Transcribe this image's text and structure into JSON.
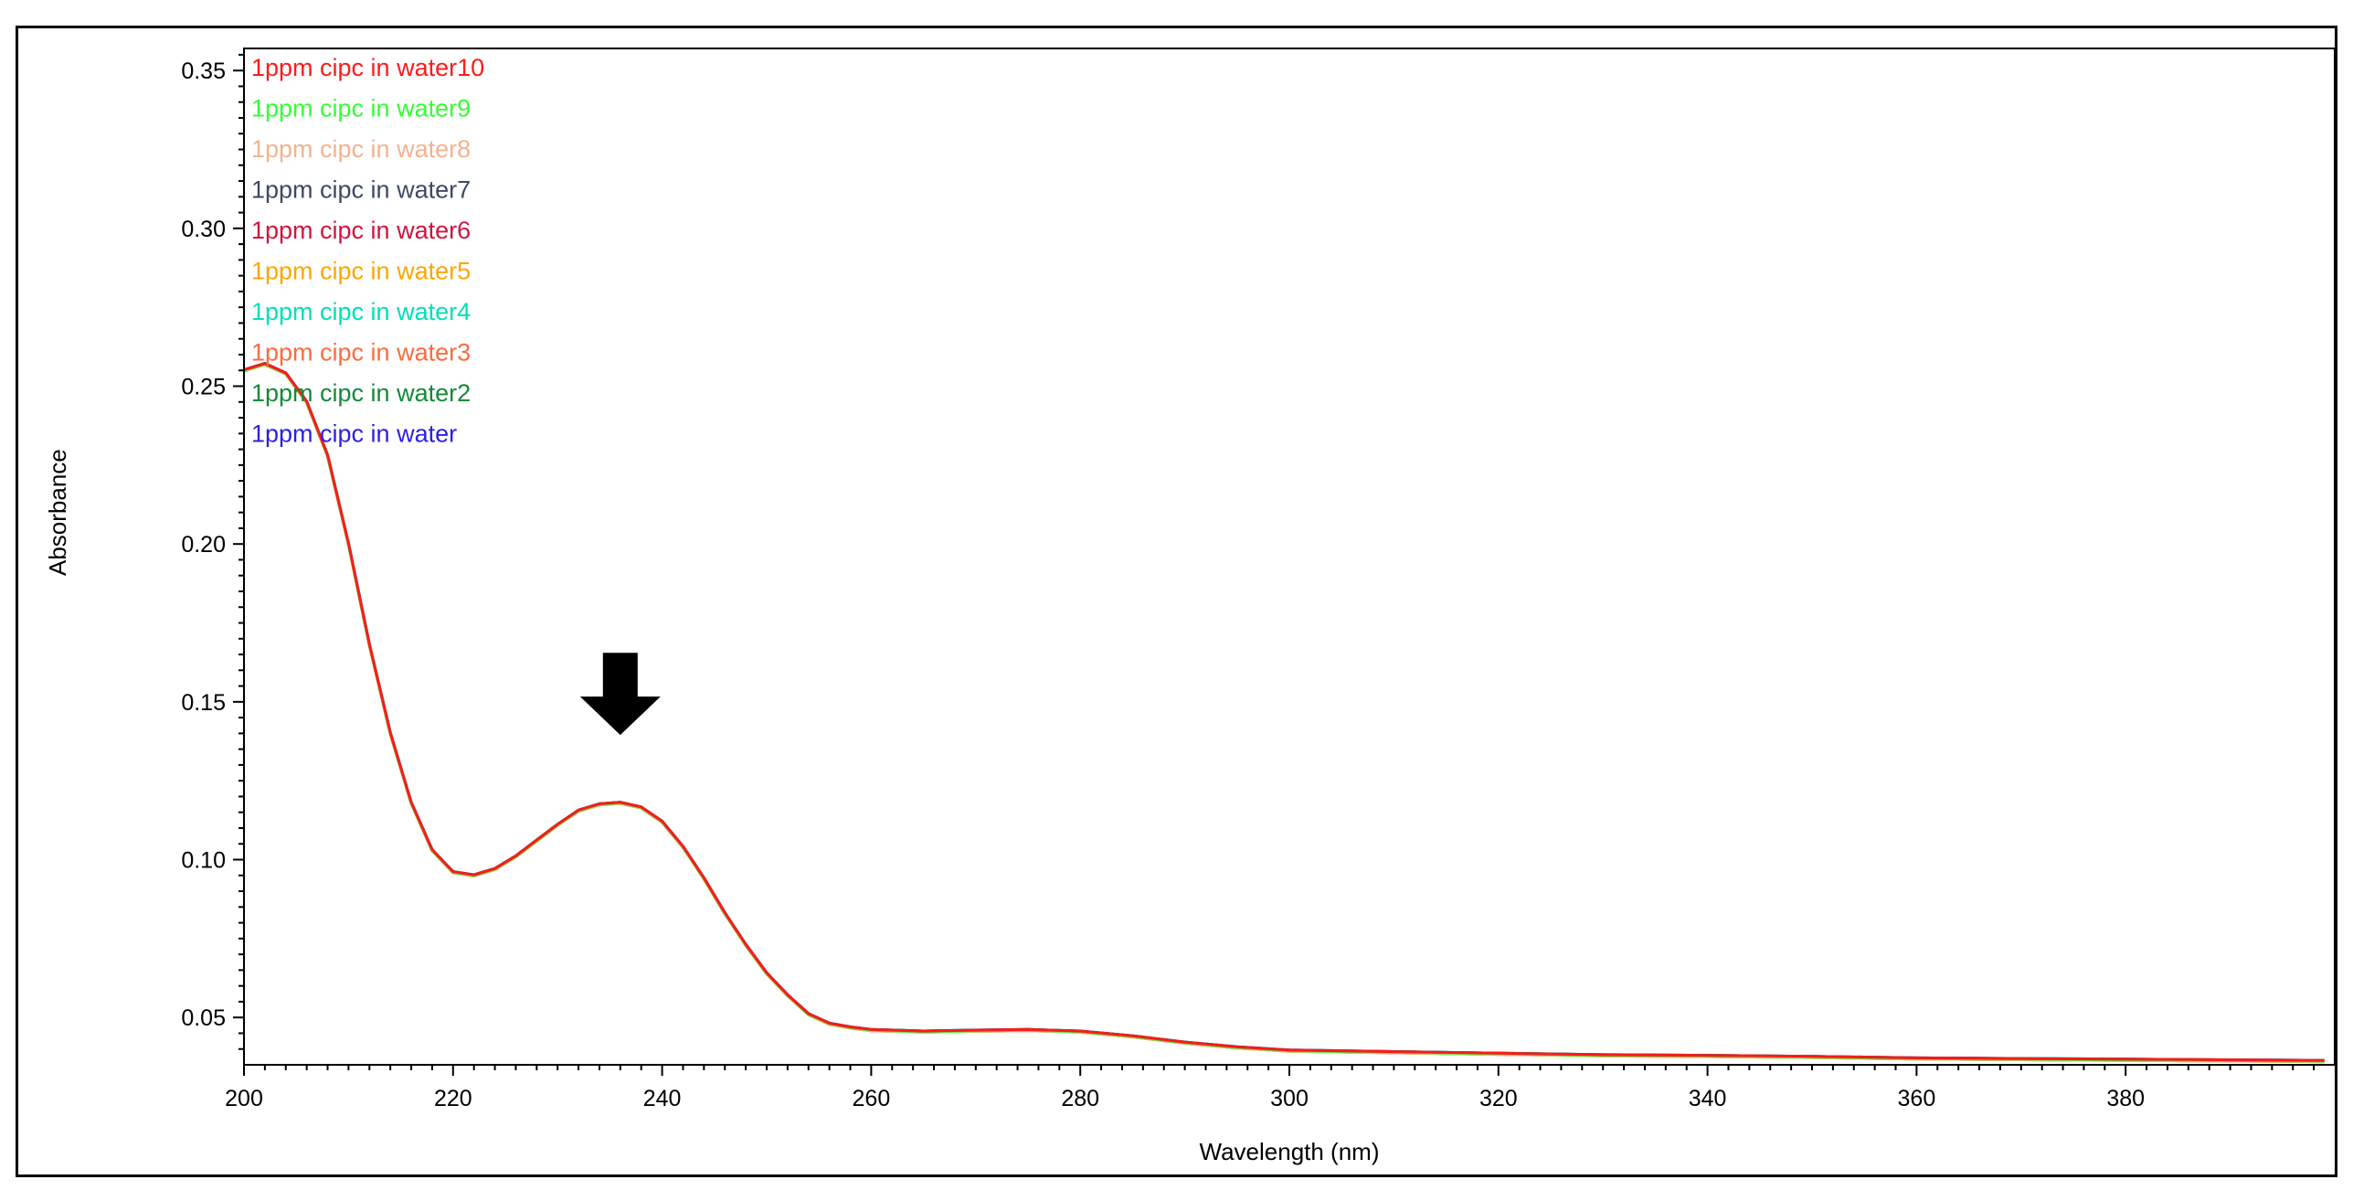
{
  "chart_data": {
    "type": "line",
    "title": "",
    "xlabel": "Wavelength (nm)",
    "ylabel": "Absorbance",
    "xlim": [
      200,
      400
    ],
    "ylim": [
      0.035,
      0.357
    ],
    "x_ticks": [
      "200",
      "220",
      "240",
      "260",
      "280",
      "300",
      "320",
      "340",
      "360",
      "380"
    ],
    "y_ticks": [
      "0.05",
      "0.10",
      "0.15",
      "0.20",
      "0.25",
      "0.30",
      "0.35"
    ],
    "grid": false,
    "legend_position": "top-left",
    "annotation": {
      "type": "arrow-down",
      "x": 236,
      "y_top": 0.1655,
      "y_bottom": 0.1395
    },
    "spectrum": {
      "x": [
        200,
        202,
        204,
        206,
        208,
        210,
        212,
        214,
        216,
        218,
        220,
        222,
        224,
        226,
        228,
        230,
        232,
        234,
        236,
        238,
        240,
        242,
        244,
        246,
        248,
        250,
        252,
        254,
        256,
        258,
        260,
        265,
        270,
        275,
        280,
        285,
        290,
        295,
        300,
        310,
        320,
        330,
        340,
        350,
        360,
        370,
        380,
        390,
        399
      ],
      "y": [
        0.255,
        0.257,
        0.254,
        0.245,
        0.228,
        0.2,
        0.168,
        0.14,
        0.118,
        0.103,
        0.096,
        0.095,
        0.097,
        0.101,
        0.106,
        0.111,
        0.1155,
        0.1175,
        0.118,
        0.1165,
        0.112,
        0.104,
        0.094,
        0.083,
        0.073,
        0.064,
        0.057,
        0.051,
        0.048,
        0.0468,
        0.046,
        0.0455,
        0.0458,
        0.046,
        0.0455,
        0.044,
        0.042,
        0.0405,
        0.0395,
        0.039,
        0.0385,
        0.038,
        0.0378,
        0.0375,
        0.037,
        0.0368,
        0.0366,
        0.0364,
        0.0362
      ]
    },
    "series": [
      {
        "name": "1ppm cipc in water10",
        "color": "#ff1a1a"
      },
      {
        "name": "1ppm cipc in water9",
        "color": "#33ff33"
      },
      {
        "name": "1ppm cipc in water8",
        "color": "#f5b28f"
      },
      {
        "name": "1ppm cipc in water7",
        "color": "#3d4a63"
      },
      {
        "name": "1ppm cipc in water6",
        "color": "#d2143c"
      },
      {
        "name": "1ppm cipc in water5",
        "color": "#ffa500"
      },
      {
        "name": "1ppm cipc in water4",
        "color": "#00e0b8"
      },
      {
        "name": "1ppm cipc in water3",
        "color": "#ff6a3d"
      },
      {
        "name": "1ppm cipc in water2",
        "color": "#138a36"
      },
      {
        "name": "1ppm cipc in water",
        "color": "#2b1fe6"
      }
    ]
  }
}
